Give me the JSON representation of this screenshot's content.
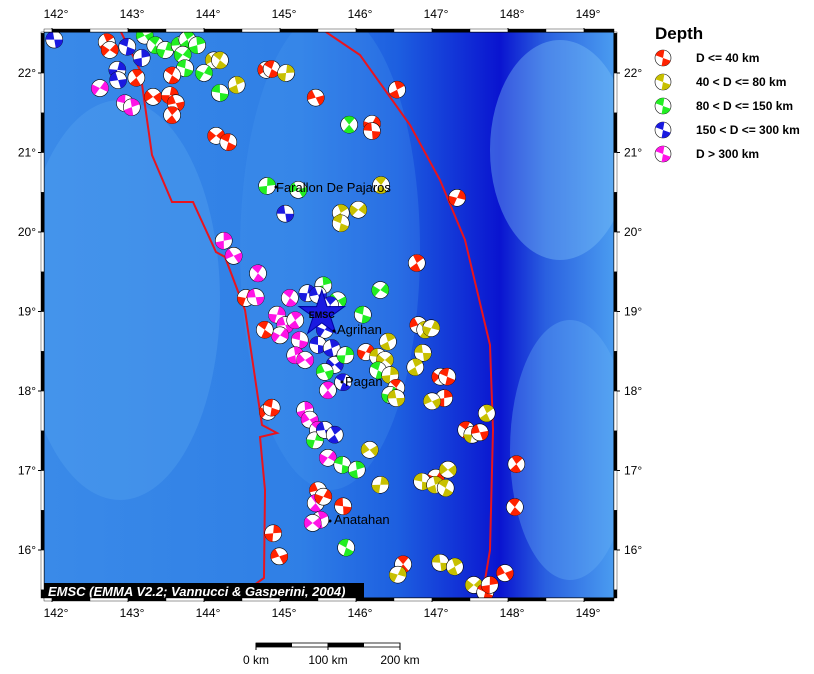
{
  "map": {
    "lon_range": [
      141.9,
      149.4
    ],
    "lat_range": [
      15.4,
      22.52
    ],
    "lon_ticks": [
      142,
      143,
      144,
      145,
      146,
      147,
      148,
      149
    ],
    "lat_ticks": [
      16,
      17,
      18,
      19,
      20,
      21,
      22
    ],
    "degree_suffix": "°",
    "credit": "EMSC (EMMA V2.2; Vannucci & Gasperini, 2004)",
    "marker_label": "EMSC",
    "marker": {
      "lon": 145.55,
      "lat": 18.97
    },
    "boundary_color": "#e8141e",
    "places": [
      {
        "name": "Farallon De Pajaros"
      },
      {
        "name": "Agrihan"
      },
      {
        "name": "Pagan"
      },
      {
        "name": "Anatahan"
      }
    ]
  },
  "legend": {
    "title": "Depth",
    "classes": [
      {
        "label": "D <= 40 km",
        "color": "#ff2200"
      },
      {
        "label": "40 < D <= 80 km",
        "color": "#c8c000"
      },
      {
        "label": "80 < D <= 150 km",
        "color": "#22ee22"
      },
      {
        "label": "150 < D <= 300 km",
        "color": "#1a1ae0"
      },
      {
        "label": "D > 300 km",
        "color": "#ff14e6"
      }
    ]
  },
  "scale_bar": {
    "labels": [
      "0 km",
      "100 km",
      "200 km"
    ]
  },
  "events": [
    [
      142.03,
      22.42,
      4
    ],
    [
      142.72,
      22.39,
      1
    ],
    [
      142.76,
      22.29,
      1
    ],
    [
      142.99,
      22.33,
      4
    ],
    [
      143.18,
      22.19,
      4
    ],
    [
      143.22,
      22.47,
      3
    ],
    [
      143.36,
      22.35,
      3
    ],
    [
      143.49,
      22.29,
      3
    ],
    [
      143.68,
      22.35,
      3
    ],
    [
      143.78,
      22.42,
      3
    ],
    [
      143.72,
      22.23,
      3
    ],
    [
      143.75,
      22.06,
      3
    ],
    [
      143.91,
      22.35,
      3
    ],
    [
      144.13,
      22.16,
      2
    ],
    [
      144.21,
      22.16,
      2
    ],
    [
      142.86,
      22.04,
      4
    ],
    [
      142.87,
      21.91,
      4
    ],
    [
      143.11,
      21.94,
      1
    ],
    [
      142.63,
      21.81,
      5
    ],
    [
      142.96,
      21.62,
      5
    ],
    [
      143.05,
      21.57,
      5
    ],
    [
      143.33,
      21.7,
      1
    ],
    [
      143.58,
      21.97,
      1
    ],
    [
      143.55,
      21.72,
      1
    ],
    [
      143.63,
      21.62,
      1
    ],
    [
      143.58,
      21.47,
      1
    ],
    [
      144.0,
      22.0,
      3
    ],
    [
      144.21,
      21.75,
      3
    ],
    [
      144.43,
      21.85,
      2
    ],
    [
      144.82,
      22.04,
      1
    ],
    [
      144.89,
      22.05,
      1
    ],
    [
      145.08,
      22.0,
      2
    ],
    [
      145.47,
      21.69,
      1
    ],
    [
      145.91,
      21.35,
      3
    ],
    [
      146.21,
      21.36,
      1
    ],
    [
      146.21,
      21.27,
      1
    ],
    [
      146.54,
      21.79,
      1
    ],
    [
      144.16,
      21.21,
      1
    ],
    [
      144.32,
      21.13,
      1
    ],
    [
      144.83,
      20.58,
      3
    ],
    [
      145.24,
      20.53,
      3
    ],
    [
      146.33,
      20.59,
      2
    ],
    [
      147.33,
      20.43,
      1
    ],
    [
      145.07,
      20.23,
      4
    ],
    [
      145.8,
      20.24,
      2
    ],
    [
      146.03,
      20.28,
      2
    ],
    [
      145.8,
      20.11,
      2
    ],
    [
      144.26,
      19.89,
      5
    ],
    [
      144.39,
      19.7,
      5
    ],
    [
      144.71,
      19.48,
      5
    ],
    [
      144.55,
      19.17,
      1
    ],
    [
      144.68,
      19.18,
      5
    ],
    [
      146.8,
      19.61,
      1
    ],
    [
      146.32,
      19.27,
      3
    ],
    [
      146.09,
      18.96,
      3
    ],
    [
      145.57,
      19.33,
      3
    ],
    [
      145.76,
      19.14,
      3
    ],
    [
      145.13,
      19.17,
      5
    ],
    [
      144.96,
      18.96,
      5
    ],
    [
      145.07,
      18.83,
      5
    ],
    [
      145.2,
      18.89,
      5
    ],
    [
      145.0,
      18.7,
      5
    ],
    [
      145.26,
      18.64,
      5
    ],
    [
      145.2,
      18.45,
      5
    ],
    [
      145.33,
      18.39,
      5
    ],
    [
      144.8,
      18.77,
      1
    ],
    [
      145.36,
      19.23,
      4
    ],
    [
      145.5,
      19.21,
      4
    ],
    [
      145.66,
      19.08,
      4
    ],
    [
      145.59,
      18.77,
      4
    ],
    [
      145.5,
      18.58,
      4
    ],
    [
      145.68,
      18.54,
      4
    ],
    [
      145.72,
      18.33,
      4
    ],
    [
      145.83,
      18.11,
      4
    ],
    [
      145.86,
      18.45,
      3
    ],
    [
      145.59,
      18.24,
      3
    ],
    [
      145.63,
      18.01,
      5
    ],
    [
      146.13,
      18.49,
      1
    ],
    [
      146.29,
      18.43,
      2
    ],
    [
      146.42,
      18.62,
      2
    ],
    [
      146.38,
      18.39,
      2
    ],
    [
      146.29,
      18.26,
      3
    ],
    [
      146.45,
      18.2,
      2
    ],
    [
      146.82,
      18.83,
      1
    ],
    [
      146.91,
      18.77,
      2
    ],
    [
      146.99,
      18.79,
      2
    ],
    [
      146.88,
      18.48,
      2
    ],
    [
      146.78,
      18.3,
      2
    ],
    [
      147.11,
      18.18,
      1
    ],
    [
      147.2,
      18.18,
      1
    ],
    [
      147.16,
      17.91,
      1
    ],
    [
      147.0,
      17.87,
      2
    ],
    [
      146.53,
      18.04,
      1
    ],
    [
      146.45,
      17.95,
      3
    ],
    [
      146.53,
      17.91,
      2
    ],
    [
      147.72,
      17.72,
      2
    ],
    [
      144.84,
      17.74,
      1
    ],
    [
      144.89,
      17.79,
      1
    ],
    [
      145.33,
      17.76,
      5
    ],
    [
      145.39,
      17.64,
      5
    ],
    [
      145.5,
      17.51,
      5
    ],
    [
      145.46,
      17.38,
      3
    ],
    [
      145.59,
      17.51,
      4
    ],
    [
      145.72,
      17.45,
      4
    ],
    [
      145.63,
      17.16,
      5
    ],
    [
      145.82,
      17.07,
      3
    ],
    [
      146.01,
      17.01,
      3
    ],
    [
      146.18,
      17.26,
      2
    ],
    [
      147.45,
      17.51,
      1
    ],
    [
      147.53,
      17.45,
      2
    ],
    [
      147.63,
      17.48,
      1
    ],
    [
      148.11,
      17.08,
      1
    ],
    [
      147.05,
      16.91,
      1
    ],
    [
      146.87,
      16.86,
      2
    ],
    [
      147.04,
      16.82,
      2
    ],
    [
      147.21,
      17.01,
      2
    ],
    [
      147.18,
      16.78,
      2
    ],
    [
      146.32,
      16.82,
      2
    ],
    [
      145.5,
      16.75,
      1
    ],
    [
      145.47,
      16.59,
      5
    ],
    [
      145.57,
      16.67,
      1
    ],
    [
      145.83,
      16.55,
      1
    ],
    [
      145.53,
      16.38,
      5
    ],
    [
      145.43,
      16.34,
      5
    ],
    [
      145.87,
      16.03,
      3
    ],
    [
      144.91,
      16.21,
      1
    ],
    [
      144.99,
      15.92,
      1
    ],
    [
      146.62,
      15.82,
      1
    ],
    [
      146.55,
      15.69,
      2
    ],
    [
      147.11,
      15.84,
      2
    ],
    [
      147.3,
      15.79,
      2
    ],
    [
      147.55,
      15.56,
      2
    ],
    [
      147.7,
      15.47,
      1
    ],
    [
      147.76,
      15.56,
      1
    ],
    [
      147.96,
      15.71,
      1
    ],
    [
      148.09,
      16.54,
      1
    ]
  ]
}
